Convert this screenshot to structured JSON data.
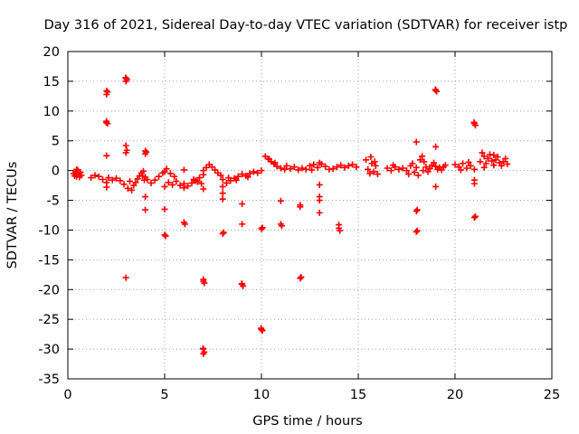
{
  "chart_data": {
    "type": "scatter",
    "title": "Day 316 of 2021, Sidereal Day-to-day VTEC variation (SDTVAR) for receiver istp",
    "xlabel": "GPS time / hours",
    "ylabel": "SDTVAR / TECUs",
    "xlim": [
      0,
      25
    ],
    "ylim": [
      -35,
      20
    ],
    "xticks": [
      0,
      5,
      10,
      15,
      20,
      25
    ],
    "yticks": [
      -35,
      -30,
      -25,
      -20,
      -15,
      -10,
      -5,
      0,
      5,
      10,
      15,
      20
    ],
    "grid": true,
    "marker": "plus",
    "marker_color": "#ff0000",
    "series": [
      {
        "name": "SDTVAR",
        "points": [
          [
            0.3,
            -0.5
          ],
          [
            0.35,
            -0.9
          ],
          [
            0.4,
            -0.2
          ],
          [
            0.45,
            -1.0
          ],
          [
            0.5,
            0.1
          ],
          [
            0.55,
            -0.6
          ],
          [
            0.6,
            -1.1
          ],
          [
            0.65,
            -0.3
          ],
          [
            0.7,
            -0.8
          ],
          [
            0.45,
            0.2
          ],
          [
            1.2,
            -1.2
          ],
          [
            1.4,
            -0.8
          ],
          [
            1.6,
            -1.0
          ],
          [
            1.8,
            -1.5
          ],
          [
            2.0,
            -2.0
          ],
          [
            2.0,
            -2.8
          ],
          [
            2.1,
            -1.2
          ],
          [
            2.3,
            -1.6
          ],
          [
            2.5,
            -1.3
          ],
          [
            2.7,
            -1.7
          ],
          [
            2.9,
            -2.3
          ],
          [
            3.1,
            -3.0
          ],
          [
            3.2,
            -1.8
          ],
          [
            3.3,
            -3.3
          ],
          [
            3.4,
            -2.5
          ],
          [
            3.5,
            -2.0
          ],
          [
            3.6,
            -1.4
          ],
          [
            3.7,
            -0.9
          ],
          [
            3.8,
            -0.4
          ],
          [
            3.9,
            -0.1
          ],
          [
            4.0,
            -1.1
          ],
          [
            3.85,
            -0.9
          ],
          [
            3.95,
            -1.6
          ],
          [
            4.1,
            -1.5
          ],
          [
            4.3,
            -2.1
          ],
          [
            4.5,
            -1.6
          ],
          [
            4.7,
            -1.0
          ],
          [
            4.9,
            -0.4
          ],
          [
            5.0,
            -0.2
          ],
          [
            5.1,
            0.3
          ],
          [
            5.3,
            -0.5
          ],
          [
            5.5,
            -1.0
          ],
          [
            5.0,
            -2.7
          ],
          [
            5.2,
            -2.0
          ],
          [
            5.4,
            -2.4
          ],
          [
            5.6,
            -1.8
          ],
          [
            5.8,
            -2.5
          ],
          [
            6.0,
            -2.2
          ],
          [
            6.2,
            -2.6
          ],
          [
            6.4,
            -2.1
          ],
          [
            6.6,
            -1.7
          ],
          [
            6.8,
            -1.2
          ],
          [
            7.0,
            -0.7
          ],
          [
            6.7,
            -1.9
          ],
          [
            6.9,
            -2.2
          ],
          [
            6.5,
            -1.5
          ],
          [
            7.0,
            0.0
          ],
          [
            7.15,
            0.5
          ],
          [
            7.3,
            1.0
          ],
          [
            7.45,
            0.6
          ],
          [
            7.6,
            0.1
          ],
          [
            7.75,
            -0.4
          ],
          [
            7.9,
            -0.8
          ],
          [
            8.0,
            -1.5
          ],
          [
            8.2,
            -2.1
          ],
          [
            8.4,
            -1.7
          ],
          [
            8.6,
            -1.3
          ],
          [
            8.8,
            -1.0
          ],
          [
            9.0,
            -0.6
          ],
          [
            9.2,
            -0.9
          ],
          [
            9.4,
            -0.5
          ],
          [
            9.6,
            -0.2
          ],
          [
            9.8,
            -0.4
          ],
          [
            10.0,
            0.0
          ],
          [
            8.3,
            -1.2
          ],
          [
            8.7,
            -1.6
          ],
          [
            9.3,
            -1.1
          ],
          [
            10.2,
            2.4
          ],
          [
            10.35,
            2.0
          ],
          [
            10.5,
            1.5
          ],
          [
            10.65,
            1.1
          ],
          [
            10.8,
            0.7
          ],
          [
            11.0,
            0.4
          ],
          [
            11.2,
            0.2
          ],
          [
            10.4,
            1.9
          ],
          [
            10.7,
            1.3
          ],
          [
            11.3,
            0.8
          ],
          [
            11.5,
            0.3
          ],
          [
            11.7,
            0.6
          ],
          [
            11.9,
            0.1
          ],
          [
            12.1,
            0.4
          ],
          [
            12.3,
            0.2
          ],
          [
            12.5,
            0.8
          ],
          [
            12.7,
            1.0
          ],
          [
            12.9,
            0.5
          ],
          [
            13.1,
            1.1
          ],
          [
            13.3,
            0.7
          ],
          [
            13.5,
            0.2
          ],
          [
            13.7,
            0.3
          ],
          [
            13.9,
            0.6
          ],
          [
            14.1,
            0.9
          ],
          [
            14.3,
            0.5
          ],
          [
            14.5,
            0.8
          ],
          [
            14.7,
            1.0
          ],
          [
            14.9,
            0.6
          ],
          [
            12.6,
            0.1
          ],
          [
            13.0,
            1.3
          ],
          [
            15.4,
            1.8
          ],
          [
            15.5,
            0.2
          ],
          [
            15.6,
            -0.5
          ],
          [
            15.7,
            1.2
          ],
          [
            15.8,
            -0.2
          ],
          [
            15.9,
            0.8
          ],
          [
            16.0,
            -0.6
          ],
          [
            15.65,
            2.3
          ],
          [
            15.85,
            1.5
          ],
          [
            16.5,
            0.4
          ],
          [
            16.7,
            0.0
          ],
          [
            16.9,
            0.6
          ],
          [
            17.1,
            0.2
          ],
          [
            17.3,
            0.4
          ],
          [
            17.5,
            0.0
          ],
          [
            16.8,
            0.9
          ],
          [
            17.6,
            -0.6
          ],
          [
            17.7,
            0.8
          ],
          [
            17.8,
            1.2
          ],
          [
            17.9,
            -0.3
          ],
          [
            18.0,
            0.5
          ],
          [
            18.1,
            -0.8
          ],
          [
            18.2,
            1.8
          ],
          [
            18.3,
            2.4
          ],
          [
            18.4,
            1.5
          ],
          [
            18.5,
            0.6
          ],
          [
            18.6,
            -0.2
          ],
          [
            18.7,
            0.3
          ],
          [
            18.8,
            0.9
          ],
          [
            18.9,
            1.3
          ],
          [
            19.0,
            0.7
          ],
          [
            19.1,
            0.2
          ],
          [
            19.2,
            0.5
          ],
          [
            19.3,
            0.1
          ],
          [
            19.4,
            0.6
          ],
          [
            19.5,
            0.9
          ],
          [
            18.35,
            0.0
          ],
          [
            20.0,
            1.0
          ],
          [
            20.2,
            0.6
          ],
          [
            20.4,
            1.2
          ],
          [
            20.6,
            0.4
          ],
          [
            20.8,
            0.8
          ],
          [
            21.0,
            0.2
          ],
          [
            20.3,
            0.1
          ],
          [
            20.7,
            1.4
          ],
          [
            21.3,
            1.5
          ],
          [
            21.4,
            3.0
          ],
          [
            21.5,
            2.4
          ],
          [
            21.6,
            1.2
          ],
          [
            21.7,
            2.0
          ],
          [
            21.8,
            2.7
          ],
          [
            21.9,
            1.6
          ],
          [
            22.0,
            0.9
          ],
          [
            22.1,
            1.8
          ],
          [
            22.2,
            2.3
          ],
          [
            22.3,
            1.3
          ],
          [
            22.4,
            0.8
          ],
          [
            22.5,
            1.5
          ],
          [
            22.6,
            2.0
          ],
          [
            22.7,
            1.1
          ],
          [
            21.5,
            0.5
          ],
          [
            22.0,
            2.6
          ],
          [
            2.0,
            13.4
          ],
          [
            2.0,
            12.8
          ],
          [
            2.05,
            13.2
          ],
          [
            2.0,
            8.3
          ],
          [
            2.05,
            7.9
          ],
          [
            1.98,
            8.1
          ],
          [
            2.0,
            2.5
          ],
          [
            3.0,
            15.5
          ],
          [
            3.0,
            15.0
          ],
          [
            3.05,
            15.3
          ],
          [
            2.98,
            15.6
          ],
          [
            3.0,
            4.2
          ],
          [
            3.0,
            3.0
          ],
          [
            3.05,
            3.4
          ],
          [
            3.0,
            -18.0
          ],
          [
            4.0,
            3.3
          ],
          [
            4.0,
            2.8
          ],
          [
            4.05,
            3.1
          ],
          [
            4.0,
            -4.4
          ],
          [
            4.0,
            -6.6
          ],
          [
            5.0,
            -6.5
          ],
          [
            5.0,
            -10.8
          ],
          [
            5.05,
            -11.0
          ],
          [
            6.0,
            -8.7
          ],
          [
            6.05,
            -9.0
          ],
          [
            6.0,
            0.1
          ],
          [
            6.0,
            -2.9
          ],
          [
            7.0,
            -18.6
          ],
          [
            7.05,
            -18.9
          ],
          [
            7.0,
            -18.3
          ],
          [
            7.0,
            -30.0
          ],
          [
            7.05,
            -30.5
          ],
          [
            6.98,
            -29.9
          ],
          [
            7.0,
            -30.8
          ],
          [
            7.0,
            -3.1
          ],
          [
            8.0,
            -3.8
          ],
          [
            8.0,
            -4.8
          ],
          [
            8.0,
            -2.7
          ],
          [
            8.0,
            -10.6
          ],
          [
            8.05,
            -10.4
          ],
          [
            9.0,
            -19.1
          ],
          [
            9.05,
            -19.4
          ],
          [
            8.98,
            -19.0
          ],
          [
            9.0,
            -9.0
          ],
          [
            9.0,
            -5.6
          ],
          [
            10.0,
            -26.7
          ],
          [
            10.05,
            -26.9
          ],
          [
            9.98,
            -26.5
          ],
          [
            10.0,
            -9.8
          ],
          [
            10.05,
            -9.6
          ],
          [
            11.0,
            -9.0
          ],
          [
            11.05,
            -9.3
          ],
          [
            11.0,
            -5.1
          ],
          [
            12.0,
            -18.1
          ],
          [
            12.05,
            -17.9
          ],
          [
            12.0,
            -6.1
          ],
          [
            12.0,
            -5.8
          ],
          [
            13.0,
            -2.4
          ],
          [
            13.0,
            -4.4
          ],
          [
            13.0,
            -5.0
          ],
          [
            13.0,
            -7.1
          ],
          [
            14.0,
            -9.1
          ],
          [
            14.05,
            -10.1
          ],
          [
            14.0,
            -9.7
          ],
          [
            18.0,
            4.8
          ],
          [
            18.0,
            -6.8
          ],
          [
            18.05,
            -6.6
          ],
          [
            18.0,
            -10.3
          ],
          [
            18.05,
            -10.1
          ],
          [
            19.0,
            13.5
          ],
          [
            19.05,
            13.3
          ],
          [
            18.98,
            13.6
          ],
          [
            19.0,
            4.0
          ],
          [
            19.0,
            -2.7
          ],
          [
            21.0,
            7.9
          ],
          [
            21.05,
            7.6
          ],
          [
            20.98,
            8.1
          ],
          [
            21.0,
            -1.6
          ],
          [
            21.0,
            -2.2
          ],
          [
            21.0,
            -7.9
          ],
          [
            21.05,
            -7.7
          ]
        ]
      }
    ]
  }
}
